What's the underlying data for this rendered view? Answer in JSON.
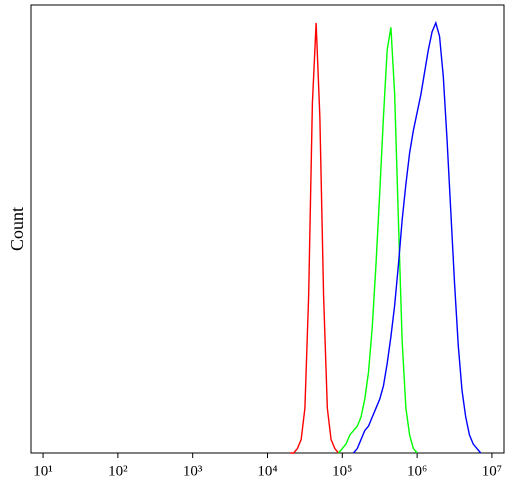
{
  "chart_data": {
    "type": "line",
    "y_label": "Count",
    "log_x": true,
    "xlim": [
      6.9,
      14500000
    ],
    "ylim": [
      0,
      100
    ],
    "xticks": [
      {
        "value": 10,
        "label": "10¹"
      },
      {
        "value": 100,
        "label": "10²"
      },
      {
        "value": 1000,
        "label": "10³"
      },
      {
        "value": 10000,
        "label": "10⁴"
      },
      {
        "value": 100000,
        "label": "10⁵"
      },
      {
        "value": 1000000,
        "label": "10⁶"
      },
      {
        "value": 10000000,
        "label": "10⁷"
      }
    ],
    "x": [
      19953,
      22387,
      25119,
      28184,
      31623,
      35481,
      39811,
      44668,
      50119,
      56234,
      63096,
      70795,
      79433,
      89125,
      100000,
      112202,
      125893,
      141254,
      158489,
      177828,
      199526,
      223872,
      251189,
      281838,
      316228,
      354813,
      398107,
      446684,
      501187,
      562341,
      630957,
      707946,
      794328,
      891251,
      1000000,
      1122018,
      1258925,
      1412538,
      1584893,
      1778279,
      1995262,
      2238721,
      2511886,
      2818383,
      3162278,
      3548134,
      3981072,
      4466836,
      5011872,
      5623413,
      6309573,
      7079458,
      7943282,
      8912509,
      10000000
    ],
    "series": [
      {
        "color": "#ff0000",
        "values": [
          0,
          0,
          1,
          3,
          10,
          35,
          78,
          96,
          75,
          35,
          10,
          3,
          1,
          0,
          null,
          null,
          null,
          null,
          null,
          null,
          null,
          null,
          null,
          null,
          null,
          null,
          null,
          null,
          null,
          null,
          null,
          null,
          null,
          null,
          null,
          null,
          null,
          null,
          null,
          null,
          null,
          null,
          null,
          null,
          null,
          null,
          null,
          null,
          null,
          null,
          null,
          null,
          null,
          null,
          null
        ]
      },
      {
        "color": "#00ff00",
        "values": [
          null,
          null,
          null,
          null,
          null,
          null,
          null,
          null,
          null,
          null,
          null,
          null,
          null,
          0,
          1,
          2,
          4,
          5,
          6,
          8,
          12,
          18,
          28,
          42,
          58,
          75,
          90,
          95,
          80,
          52,
          25,
          10,
          4,
          1,
          0,
          null,
          null,
          null,
          null,
          null,
          null,
          null,
          null,
          null,
          null,
          null,
          null,
          null,
          null,
          null,
          null,
          null,
          null,
          null,
          null
        ]
      },
      {
        "color": "#0000ff",
        "values": [
          null,
          null,
          null,
          null,
          null,
          null,
          null,
          null,
          null,
          null,
          null,
          null,
          null,
          null,
          null,
          null,
          null,
          0,
          1,
          3,
          5,
          6,
          8,
          10,
          12,
          15,
          20,
          26,
          33,
          42,
          52,
          60,
          67,
          72,
          76,
          80,
          85,
          90,
          94,
          96,
          93,
          84,
          70,
          54,
          38,
          24,
          14,
          8,
          4,
          2,
          1,
          0,
          null,
          null,
          null
        ]
      }
    ]
  }
}
